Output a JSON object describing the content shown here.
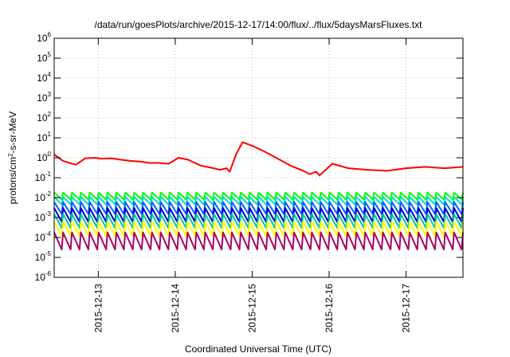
{
  "chart_data": {
    "type": "line",
    "title": "/data/run/goesPlots/archive/2015-12-17/14:00/flux/../flux/5daysMarsFluxes.txt",
    "xlabel": "Coordinated Universal Time (UTC)",
    "ylabel": {
      "pre": "protons/cm",
      "sup": "2",
      "post": "-s-sr-MeV"
    },
    "yscale": "log",
    "ylim": [
      1e-06,
      1000000.0
    ],
    "xlim": [
      "2015-12-12 10:15",
      "2015-12-17 17:45"
    ],
    "grid": true,
    "x_ticks": [
      "2015-12-13",
      "2015-12-14",
      "2015-12-15",
      "2015-12-16",
      "2015-12-17"
    ],
    "y_ticks": [
      {
        "base": "10",
        "exp": "-6"
      },
      {
        "base": "10",
        "exp": "-5"
      },
      {
        "base": "10",
        "exp": "-4"
      },
      {
        "base": "10",
        "exp": "-3"
      },
      {
        "base": "10",
        "exp": "-2"
      },
      {
        "base": "10",
        "exp": "-1"
      },
      {
        "base": "10",
        "exp": "0"
      },
      {
        "base": "10",
        "exp": "1"
      },
      {
        "base": "10",
        "exp": "2"
      },
      {
        "base": "10",
        "exp": "3"
      },
      {
        "base": "10",
        "exp": "4"
      },
      {
        "base": "10",
        "exp": "5"
      },
      {
        "base": "10",
        "exp": "6"
      }
    ],
    "series": [
      {
        "color": "#ff0000",
        "x": [
          "2015-12-12 10:15",
          "2015-12-12 12:00",
          "2015-12-12 13:00",
          "2015-12-12 15:00",
          "2015-12-12 17:00",
          "2015-12-12 20:00",
          "2015-12-12 23:00",
          "2015-12-13 01:00",
          "2015-12-13 04:00",
          "2015-12-13 07:00",
          "2015-12-13 10:00",
          "2015-12-13 13:00",
          "2015-12-13 16:00",
          "2015-12-13 19:00",
          "2015-12-13 22:00",
          "2015-12-14 01:00",
          "2015-12-14 04:00",
          "2015-12-14 08:00",
          "2015-12-14 12:00",
          "2015-12-14 14:00",
          "2015-12-14 16:00",
          "2015-12-14 17:00",
          "2015-12-14 19:00",
          "2015-12-14 21:00",
          "2015-12-15 00:00",
          "2015-12-15 04:00",
          "2015-12-15 08:00",
          "2015-12-15 12:00",
          "2015-12-15 16:00",
          "2015-12-15 18:00",
          "2015-12-15 20:00",
          "2015-12-15 21:00",
          "2015-12-16 01:00",
          "2015-12-16 06:00",
          "2015-12-16 12:00",
          "2015-12-16 18:00",
          "2015-12-17 00:00",
          "2015-12-17 06:00",
          "2015-12-17 12:00",
          "2015-12-17 17:45"
        ],
        "y": [
          1.5,
          0.9,
          0.7,
          0.55,
          0.45,
          0.95,
          1.0,
          0.9,
          0.95,
          0.8,
          0.7,
          0.65,
          0.55,
          0.55,
          0.5,
          1.0,
          0.8,
          0.4,
          0.3,
          0.25,
          0.3,
          0.2,
          1.5,
          6.0,
          4.0,
          2.0,
          0.9,
          0.4,
          0.22,
          0.15,
          0.2,
          0.13,
          0.5,
          0.3,
          0.25,
          0.22,
          0.3,
          0.35,
          0.3,
          0.35
        ]
      },
      {
        "color": "#00ff00",
        "x_start": "2015-12-12 10:15",
        "x_end": "2015-12-17 17:45",
        "cycles": 46,
        "peak": 0.018,
        "trough": 0.008
      },
      {
        "color": "#00e0c0",
        "x_start": "2015-12-12 10:15",
        "x_end": "2015-12-17 17:45",
        "cycles": 46,
        "peak": 0.011,
        "trough": 0.0045
      },
      {
        "color": "#0060ff",
        "x_start": "2015-12-12 10:15",
        "x_end": "2015-12-17 17:45",
        "cycles": 46,
        "peak": 0.006,
        "trough": 0.0015
      },
      {
        "color": "#0000cd",
        "x_start": "2015-12-12 10:15",
        "x_end": "2015-12-17 17:45",
        "cycles": 46,
        "peak": 0.003,
        "trough": 0.0006
      },
      {
        "color": "#00c8a0",
        "x_start": "2015-12-12 10:15",
        "x_end": "2015-12-17 17:45",
        "cycles": 46,
        "peak": 0.0015,
        "trough": 0.0003
      },
      {
        "color": "#ffff00",
        "x_start": "2015-12-12 10:15",
        "x_end": "2015-12-17 17:45",
        "cycles": 46,
        "peak": 0.0006,
        "trough": 0.00012
      },
      {
        "color": "#aa0066",
        "x_start": "2015-12-12 10:15",
        "x_end": "2015-12-17 17:45",
        "cycles": 46,
        "peak": 0.00018,
        "trough": 2.5e-05
      }
    ]
  }
}
